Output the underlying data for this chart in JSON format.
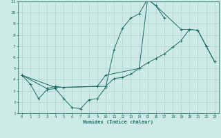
{
  "xlabel": "Humidex (Indice chaleur)",
  "bg_color": "#ceeae6",
  "line_color": "#1a6b62",
  "grid_color": "#afd4d0",
  "line1_x": [
    0,
    1,
    2,
    3,
    4,
    5,
    6,
    7,
    8,
    9,
    10,
    11,
    12,
    13,
    14,
    15,
    16,
    17
  ],
  "line1_y": [
    4.4,
    3.6,
    2.3,
    3.1,
    3.2,
    2.3,
    1.5,
    1.4,
    2.2,
    2.3,
    3.3,
    6.7,
    8.6,
    9.5,
    9.9,
    11.2,
    10.6,
    9.5
  ],
  "line2_x": [
    0,
    3,
    4,
    5,
    9,
    10,
    11,
    12,
    13,
    14,
    15,
    16,
    17,
    18,
    19,
    20,
    21,
    22,
    23
  ],
  "line2_y": [
    4.4,
    3.2,
    3.4,
    3.3,
    3.4,
    3.4,
    4.1,
    4.2,
    4.5,
    5.0,
    5.5,
    5.9,
    6.3,
    6.9,
    7.5,
    8.5,
    8.4,
    7.0,
    5.6
  ],
  "line3_x": [
    0,
    4,
    9,
    10,
    14,
    15,
    16,
    19,
    20,
    21,
    22,
    23
  ],
  "line3_y": [
    4.4,
    3.3,
    3.4,
    4.4,
    5.0,
    11.2,
    10.6,
    8.5,
    8.5,
    8.4,
    7.0,
    5.6
  ],
  "xlim": [
    -0.5,
    23.5
  ],
  "ylim": [
    1,
    11
  ],
  "xticks": [
    0,
    1,
    2,
    3,
    4,
    5,
    6,
    7,
    8,
    9,
    10,
    11,
    12,
    13,
    14,
    15,
    16,
    17,
    18,
    19,
    20,
    21,
    22,
    23
  ],
  "yticks": [
    1,
    2,
    3,
    4,
    5,
    6,
    7,
    8,
    9,
    10,
    11
  ]
}
